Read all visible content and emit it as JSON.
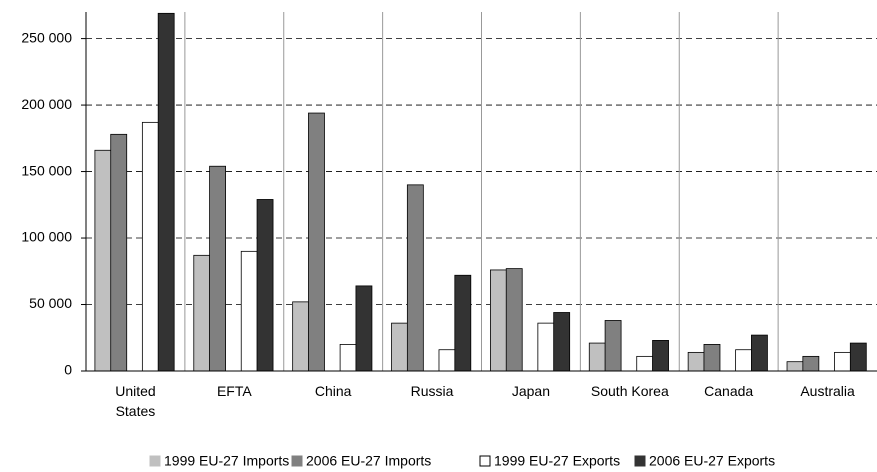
{
  "chart_data": {
    "type": "bar",
    "categories": [
      "United States",
      "EFTA",
      "China",
      "Russia",
      "Japan",
      "South Korea",
      "Canada",
      "Australia"
    ],
    "series": [
      {
        "name": "1999 EU-27 Imports",
        "color": "#c0c0c0",
        "values": [
          166000,
          87000,
          52000,
          36000,
          76000,
          21000,
          14000,
          7000
        ]
      },
      {
        "name": "2006 EU-27 Imports",
        "color": "#808080",
        "values": [
          178000,
          154000,
          194000,
          140000,
          77000,
          38000,
          20000,
          11000
        ]
      },
      {
        "name": "1999 EU-27 Exports",
        "color": "#ffffff",
        "values": [
          187000,
          90000,
          20000,
          16000,
          36000,
          11000,
          16000,
          14000
        ]
      },
      {
        "name": "2006 EU-27 Exports",
        "color": "#333333",
        "values": [
          269000,
          129000,
          64000,
          72000,
          44000,
          23000,
          27000,
          21000
        ]
      }
    ],
    "ylim": [
      0,
      270000
    ],
    "yticks": [
      0,
      {
        "value": 50000,
        "label": "50 000"
      },
      {
        "value": 100000,
        "label": "100 000"
      },
      {
        "value": 150000,
        "label": "150 000"
      },
      {
        "value": 200000,
        "label": "200 000"
      },
      {
        "value": 250000,
        "label": "250 000"
      }
    ],
    "grid": true,
    "legend": "bottom"
  }
}
